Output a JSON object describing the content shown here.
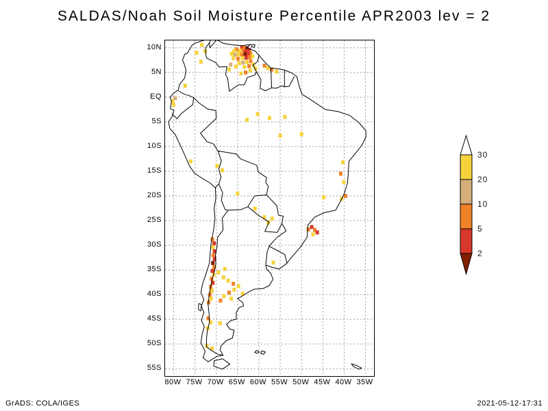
{
  "title": "SALDAS/Noah Soil Moisture Percentile APR2003 lev = 2",
  "footer": {
    "credit": "GrADS: COLA/IGES",
    "timestamp": "2021-05-12-17:31"
  },
  "chart_data": {
    "type": "heatmap",
    "subtype": "geographic-shaded-grid-map",
    "region": "South America",
    "dataset": "SALDAS/Noah",
    "variable": "Soil Moisture Percentile",
    "time": "APR2003",
    "level": "2",
    "axes": {
      "extent": {
        "lon_min": -82,
        "lon_max": -33,
        "lat_min": -56.5,
        "lat_max": 11.5
      },
      "grid": "dashed",
      "lat_ticks": [
        {
          "label": "10N",
          "value": 10
        },
        {
          "label": "5N",
          "value": 5
        },
        {
          "label": "EQ",
          "value": 0
        },
        {
          "label": "5S",
          "value": -5
        },
        {
          "label": "10S",
          "value": -10
        },
        {
          "label": "15S",
          "value": -15
        },
        {
          "label": "20S",
          "value": -20
        },
        {
          "label": "25S",
          "value": -25
        },
        {
          "label": "30S",
          "value": -30
        },
        {
          "label": "35S",
          "value": -35
        },
        {
          "label": "40S",
          "value": -40
        },
        {
          "label": "45S",
          "value": -45
        },
        {
          "label": "50S",
          "value": -50
        },
        {
          "label": "55S",
          "value": -55
        }
      ],
      "lon_ticks": [
        {
          "label": "80W",
          "value": -80
        },
        {
          "label": "75W",
          "value": -75
        },
        {
          "label": "70W",
          "value": -70
        },
        {
          "label": "65W",
          "value": -65
        },
        {
          "label": "60W",
          "value": -60
        },
        {
          "label": "55W",
          "value": -55
        },
        {
          "label": "50W",
          "value": -50
        },
        {
          "label": "45W",
          "value": -45
        },
        {
          "label": "40W",
          "value": -40
        },
        {
          "label": "35W",
          "value": -35
        }
      ]
    },
    "colorbar": {
      "position": "right",
      "levels": [
        "30",
        "20",
        "10",
        "5",
        "2"
      ],
      "segments": [
        {
          "range": "> 30",
          "color": "#ffffff",
          "shape": "arrow-up"
        },
        {
          "range": "20-30",
          "color": "#f6d33c",
          "shape": "box"
        },
        {
          "range": "10-20",
          "color": "#d6ae7b",
          "shape": "box"
        },
        {
          "range": "5-10",
          "color": "#f08228",
          "shape": "box"
        },
        {
          "range": "2-5",
          "color": "#d8382a",
          "shape": "box"
        },
        {
          "range": "< 2",
          "color": "#822000",
          "shape": "arrow-down"
        }
      ]
    },
    "colors": {
      "p30": "#f6d33c",
      "p20": "#d6ae7b",
      "p10": "#f08228",
      "p5": "#d8382a",
      "p2": "#822000"
    },
    "points": [
      [
        -64.0,
        10.1,
        "p5"
      ],
      [
        -63.4,
        10.0,
        "p10"
      ],
      [
        -62.8,
        9.9,
        "p2"
      ],
      [
        -62.3,
        9.6,
        "p5"
      ],
      [
        -63.8,
        9.5,
        "p10"
      ],
      [
        -63.1,
        9.3,
        "p5"
      ],
      [
        -64.5,
        9.4,
        "p30"
      ],
      [
        -65.2,
        9.7,
        "p10"
      ],
      [
        -65.8,
        9.4,
        "p30"
      ],
      [
        -62.0,
        8.9,
        "p10"
      ],
      [
        -62.6,
        8.8,
        "p5"
      ],
      [
        -63.3,
        8.7,
        "p2"
      ],
      [
        -64.0,
        8.6,
        "p10"
      ],
      [
        -64.8,
        8.7,
        "p30"
      ],
      [
        -65.6,
        8.6,
        "p20"
      ],
      [
        -66.4,
        8.8,
        "p30"
      ],
      [
        -61.5,
        8.3,
        "p30"
      ],
      [
        -62.2,
        8.1,
        "p10"
      ],
      [
        -63.0,
        8.0,
        "p5"
      ],
      [
        -63.9,
        7.9,
        "p30"
      ],
      [
        -64.9,
        7.8,
        "p10"
      ],
      [
        -66.0,
        7.9,
        "p30"
      ],
      [
        -61.9,
        7.3,
        "p10"
      ],
      [
        -62.8,
        7.1,
        "p30"
      ],
      [
        -63.7,
        7.0,
        "p20"
      ],
      [
        -64.6,
        6.9,
        "p30"
      ],
      [
        -61.3,
        6.6,
        "p30"
      ],
      [
        -62.3,
        6.3,
        "p10"
      ],
      [
        -63.4,
        6.1,
        "p30"
      ],
      [
        -65.4,
        6.2,
        "p30"
      ],
      [
        -66.6,
        6.6,
        "p20"
      ],
      [
        -60.8,
        5.8,
        "p30"
      ],
      [
        -62.0,
        5.4,
        "p30"
      ],
      [
        -63.1,
        5.0,
        "p10"
      ],
      [
        -64.2,
        4.8,
        "p30"
      ],
      [
        -67.0,
        5.6,
        "p30"
      ],
      [
        -58.7,
        6.4,
        "p10"
      ],
      [
        -57.9,
        5.9,
        "p30"
      ],
      [
        -57.0,
        5.6,
        "p10"
      ],
      [
        -55.9,
        5.2,
        "p30"
      ],
      [
        -73.4,
        10.6,
        "p30"
      ],
      [
        -72.6,
        9.3,
        "p30"
      ],
      [
        -74.6,
        9.0,
        "p30"
      ],
      [
        -73.6,
        7.2,
        "p30"
      ],
      [
        -80.2,
        -0.8,
        "p30"
      ],
      [
        -80.0,
        -1.6,
        "p30"
      ],
      [
        -79.6,
        -0.2,
        "p20"
      ],
      [
        -77.3,
        2.3,
        "p30"
      ],
      [
        -62.8,
        -4.6,
        "p30"
      ],
      [
        -60.3,
        -3.4,
        "p30"
      ],
      [
        -57.5,
        -4.2,
        "p30"
      ],
      [
        -55.0,
        -7.8,
        "p30"
      ],
      [
        -53.9,
        -4.0,
        "p30"
      ],
      [
        -50.0,
        -7.5,
        "p30"
      ],
      [
        -76.0,
        -13.0,
        "p30"
      ],
      [
        -69.8,
        -13.9,
        "p30"
      ],
      [
        -68.6,
        -14.8,
        "p30"
      ],
      [
        -65.0,
        -19.5,
        "p30"
      ],
      [
        -40.3,
        -13.2,
        "p30"
      ],
      [
        -40.8,
        -15.5,
        "p10"
      ],
      [
        -40.1,
        -17.2,
        "p30"
      ],
      [
        -39.7,
        -20.0,
        "p10"
      ],
      [
        -40.6,
        -20.6,
        "p30"
      ],
      [
        -44.8,
        -20.3,
        "p30"
      ],
      [
        -47.6,
        -26.3,
        "p5"
      ],
      [
        -46.9,
        -26.9,
        "p10"
      ],
      [
        -47.3,
        -27.8,
        "p30"
      ],
      [
        -46.3,
        -27.4,
        "p5"
      ],
      [
        -48.4,
        -26.8,
        "p10"
      ],
      [
        -58.7,
        -24.3,
        "p30"
      ],
      [
        -57.8,
        -25.4,
        "p30"
      ],
      [
        -60.9,
        -22.6,
        "p30"
      ],
      [
        -56.9,
        -24.6,
        "p30"
      ],
      [
        -56.6,
        -33.5,
        "p30"
      ],
      [
        -70.9,
        -28.8,
        "p10"
      ],
      [
        -70.5,
        -29.6,
        "p5"
      ],
      [
        -70.8,
        -30.4,
        "p30"
      ],
      [
        -70.4,
        -31.2,
        "p5"
      ],
      [
        -70.7,
        -32.0,
        "p10"
      ],
      [
        -70.4,
        -32.8,
        "p5"
      ],
      [
        -70.8,
        -33.6,
        "p2"
      ],
      [
        -70.5,
        -34.4,
        "p10"
      ],
      [
        -70.9,
        -35.2,
        "p5"
      ],
      [
        -70.6,
        -36.0,
        "p30"
      ],
      [
        -71.1,
        -36.8,
        "p10"
      ],
      [
        -70.8,
        -37.6,
        "p5"
      ],
      [
        -71.3,
        -38.4,
        "p10"
      ],
      [
        -71.0,
        -39.2,
        "p30"
      ],
      [
        -71.5,
        -40.0,
        "p10"
      ],
      [
        -71.2,
        -40.8,
        "p30"
      ],
      [
        -71.8,
        -41.6,
        "p10"
      ],
      [
        -69.5,
        -35.5,
        "p30"
      ],
      [
        -68.3,
        -36.5,
        "p30"
      ],
      [
        -67.2,
        -37.2,
        "p30"
      ],
      [
        -66.0,
        -37.8,
        "p10"
      ],
      [
        -64.8,
        -38.3,
        "p30"
      ],
      [
        -65.8,
        -39.0,
        "p30"
      ],
      [
        -67.0,
        -39.6,
        "p10"
      ],
      [
        -68.2,
        -40.3,
        "p30"
      ],
      [
        -69.0,
        -41.2,
        "p10"
      ],
      [
        -66.5,
        -40.8,
        "p30"
      ],
      [
        -63.8,
        -39.8,
        "p30"
      ],
      [
        -68.0,
        -34.8,
        "p30"
      ],
      [
        -71.9,
        -44.8,
        "p10"
      ],
      [
        -71.3,
        -45.6,
        "p30"
      ],
      [
        -72.0,
        -46.8,
        "p30"
      ],
      [
        -69.1,
        -45.8,
        "p30"
      ],
      [
        -72.2,
        -50.4,
        "p30"
      ],
      [
        -71.0,
        -50.9,
        "p30"
      ]
    ]
  }
}
